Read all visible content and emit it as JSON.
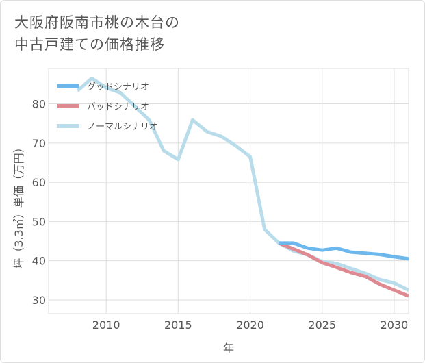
{
  "title_lines": [
    "大阪府阪南市桃の木台の",
    "中古戸建ての価格推移"
  ],
  "chart_data": {
    "type": "line",
    "xlabel": "年",
    "ylabel": "坪（3.3㎡）単価（万円）",
    "xlim": [
      2006,
      2031
    ],
    "ylim": [
      26.5,
      89
    ],
    "xticks": [
      2010,
      2015,
      2020,
      2025,
      2030
    ],
    "yticks": [
      30,
      40,
      50,
      60,
      70,
      80
    ],
    "grid": true,
    "legend_position": "top-left",
    "series": [
      {
        "name": "グッドシナリオ",
        "color": "#6cb8ec",
        "x": [
          2022,
          2023,
          2024,
          2025,
          2026,
          2027,
          2028,
          2029,
          2030,
          2031
        ],
        "y": [
          44.5,
          44.5,
          43.2,
          42.7,
          43.2,
          42.2,
          41.9,
          41.6,
          41.0,
          40.5
        ]
      },
      {
        "name": "バッドシナリオ",
        "color": "#df8a93",
        "x": [
          2022,
          2023,
          2024,
          2025,
          2026,
          2027,
          2028,
          2029,
          2030,
          2031
        ],
        "y": [
          44.5,
          43.0,
          41.5,
          39.5,
          38.3,
          37.0,
          36.0,
          34.0,
          32.5,
          31.0
        ]
      },
      {
        "name": "ノーマルシナリオ",
        "color": "#b9dceb",
        "x": [
          2008,
          2009,
          2010,
          2011,
          2012,
          2013,
          2014,
          2015,
          2016,
          2017,
          2018,
          2019,
          2020,
          2021,
          2022,
          2023,
          2024,
          2025,
          2026,
          2027,
          2028,
          2029,
          2030,
          2031
        ],
        "y": [
          83.3,
          86.5,
          84.1,
          82.8,
          79.3,
          75.8,
          68.0,
          65.8,
          75.9,
          72.9,
          71.7,
          69.3,
          66.5,
          48.0,
          44.5,
          42.5,
          41.5,
          39.8,
          39.3,
          38.0,
          36.8,
          35.2,
          34.3,
          32.5
        ]
      }
    ]
  }
}
